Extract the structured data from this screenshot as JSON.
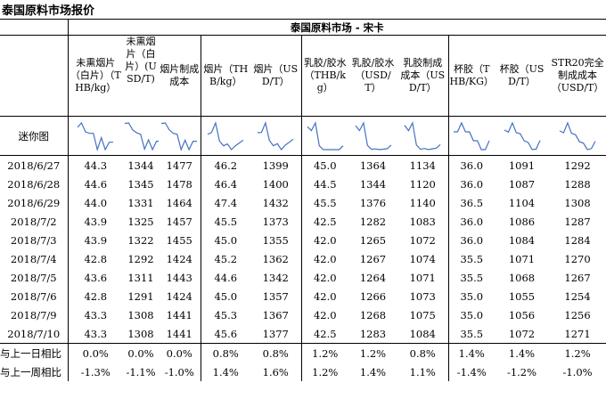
{
  "title": "泰国原料市场报价",
  "market_title": "泰国原料市场 - 宋卡",
  "columns": [
    "未熏烟片（白片）（THB/kg）",
    "未熏烟片（白片）(USD/T)",
    "烟片制成成本",
    "烟片（THB/kg）",
    "烟片（USD/T）",
    "乳胶/胶水（THB/kg）",
    "乳胶/胶水（USD/T）",
    "乳胶制成成本（USD/T）",
    "杯胶（THB/KG）",
    "杯胶（USD/T）",
    "STR20完全制成成本（USD/T）"
  ],
  "sparkline_label": "迷你图",
  "rows": [
    {
      "date": "2018/6/27",
      "values": [
        "44.3",
        "1344",
        "1477",
        "46.2",
        "1399",
        "45.0",
        "1364",
        "1134",
        "36.0",
        "1091",
        "1292"
      ]
    },
    {
      "date": "2018/6/28",
      "values": [
        "44.6",
        "1345",
        "1478",
        "46.4",
        "1400",
        "44.5",
        "1344",
        "1120",
        "36.0",
        "1087",
        "1288"
      ]
    },
    {
      "date": "2018/6/29",
      "values": [
        "44.0",
        "1331",
        "1464",
        "47.4",
        "1432",
        "45.5",
        "1376",
        "1140",
        "36.5",
        "1104",
        "1308"
      ]
    },
    {
      "date": "2018/7/2",
      "values": [
        "43.9",
        "1325",
        "1457",
        "45.5",
        "1373",
        "42.5",
        "1282",
        "1083",
        "36.0",
        "1086",
        "1287"
      ]
    },
    {
      "date": "2018/7/3",
      "values": [
        "43.9",
        "1322",
        "1455",
        "45.0",
        "1355",
        "42.0",
        "1265",
        "1072",
        "36.0",
        "1084",
        "1284"
      ]
    },
    {
      "date": "2018/7/4",
      "values": [
        "42.8",
        "1292",
        "1424",
        "45.2",
        "1362",
        "42.0",
        "1267",
        "1074",
        "35.5",
        "1071",
        "1270"
      ]
    },
    {
      "date": "2018/7/5",
      "values": [
        "43.6",
        "1311",
        "1443",
        "44.6",
        "1342",
        "42.0",
        "1264",
        "1071",
        "35.5",
        "1068",
        "1267"
      ]
    },
    {
      "date": "2018/7/6",
      "values": [
        "42.8",
        "1291",
        "1424",
        "45.0",
        "1357",
        "42.0",
        "1266",
        "1073",
        "35.0",
        "1055",
        "1254"
      ]
    },
    {
      "date": "2018/7/9",
      "values": [
        "43.3",
        "1308",
        "1441",
        "45.3",
        "1367",
        "42.0",
        "1268",
        "1075",
        "35.0",
        "1056",
        "1256"
      ]
    },
    {
      "date": "2018/7/10",
      "values": [
        "43.3",
        "1308",
        "1441",
        "45.6",
        "1377",
        "42.5",
        "1283",
        "1084",
        "35.5",
        "1072",
        "1271"
      ]
    }
  ],
  "changes": [
    {
      "label": "与上一日相比",
      "values": [
        "0.0%",
        "0.0%",
        "0.0%",
        "0.8%",
        "0.8%",
        "1.2%",
        "1.2%",
        "0.8%",
        "1.4%",
        "1.4%",
        "1.2%"
      ]
    },
    {
      "label": "与上一周相比",
      "values": [
        "-1.3%",
        "-1.1%",
        "-1.0%",
        "1.4%",
        "1.6%",
        "1.2%",
        "1.4%",
        "1.1%",
        "-1.4%",
        "-1.2%",
        "-1.0%"
      ]
    }
  ],
  "line_color": "#4472c4"
}
